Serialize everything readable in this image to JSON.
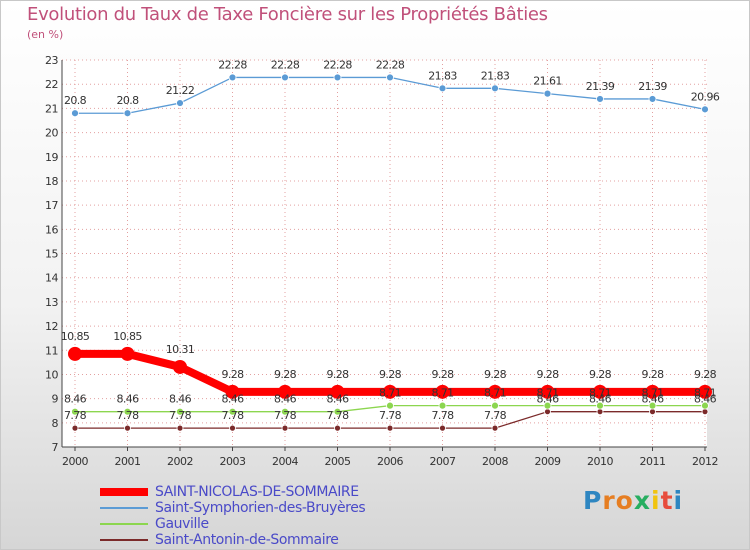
{
  "chart_data": {
    "type": "line",
    "title": "Evolution du Taux de Taxe Foncière sur les Propriétés Bâties",
    "ylabel": "(en %)",
    "xlabel": "",
    "ylim": [
      7,
      23
    ],
    "yticks": [
      "7",
      "8",
      "9",
      "10",
      "11",
      "12",
      "13",
      "14",
      "15",
      "16",
      "17",
      "18",
      "19",
      "20",
      "21",
      "22",
      "23"
    ],
    "categories": [
      "2000",
      "2001",
      "2002",
      "2003",
      "2004",
      "2005",
      "2006",
      "2007",
      "2008",
      "2009",
      "2010",
      "2011",
      "2012"
    ],
    "series": [
      {
        "name": "SAINT-NICOLAS-DE-SOMMAIRE",
        "color": "#ff0000",
        "values": [
          10.85,
          10.85,
          10.31,
          9.28,
          9.28,
          9.28,
          9.28,
          9.28,
          9.28,
          9.28,
          9.28,
          9.28,
          9.28
        ],
        "labels": [
          "10.85",
          "10.85",
          "10.31",
          "9.28",
          "9.28",
          "9.28",
          "9.28",
          "9.28",
          "9.28",
          "9.28",
          "9.28",
          "9.28",
          "9.28"
        ]
      },
      {
        "name": "Saint-Symphorien-des-Bruyères",
        "color": "#5b9bd5",
        "values": [
          20.8,
          20.8,
          21.22,
          22.28,
          22.28,
          22.28,
          22.28,
          21.83,
          21.83,
          21.61,
          21.39,
          21.39,
          20.96
        ],
        "labels": [
          "20.8",
          "20.8",
          "21.22",
          "22.28",
          "22.28",
          "22.28",
          "22.28",
          "21.83",
          "21.83",
          "21.61",
          "21.39",
          "21.39",
          "20.96"
        ]
      },
      {
        "name": "Gauville",
        "color": "#8cd64f",
        "values": [
          8.46,
          8.46,
          8.46,
          8.46,
          8.46,
          8.46,
          8.71,
          8.71,
          8.71,
          8.71,
          8.71,
          8.71,
          8.71
        ],
        "labels": [
          "8.46",
          "8.46",
          "8.46",
          "8.46",
          "8.46",
          "8.46",
          "8.71",
          "8.71",
          "8.71",
          "8.71",
          "8.71",
          "8.71",
          "8.71"
        ]
      },
      {
        "name": "Saint-Antonin-de-Sommaire",
        "color": "#7b2a2a",
        "values": [
          7.78,
          7.78,
          7.78,
          7.78,
          7.78,
          7.78,
          7.78,
          7.78,
          7.78,
          8.46,
          8.46,
          8.46,
          8.46
        ],
        "labels": [
          "7.78",
          "7.78",
          "7.78",
          "7.78",
          "7.78",
          "7.78",
          "7.78",
          "7.78",
          "7.78",
          "8.46",
          "8.46",
          "8.46",
          "8.46"
        ]
      }
    ],
    "legend_position": "bottom-left"
  },
  "logo": {
    "letters": [
      "P",
      "r",
      "o",
      "x",
      "i",
      "t",
      "i"
    ],
    "colors": [
      "#2e86c1",
      "#e67e22",
      "#e67e22",
      "#27ae60",
      "#f1c40f",
      "#e74c3c",
      "#2e86c1"
    ]
  }
}
